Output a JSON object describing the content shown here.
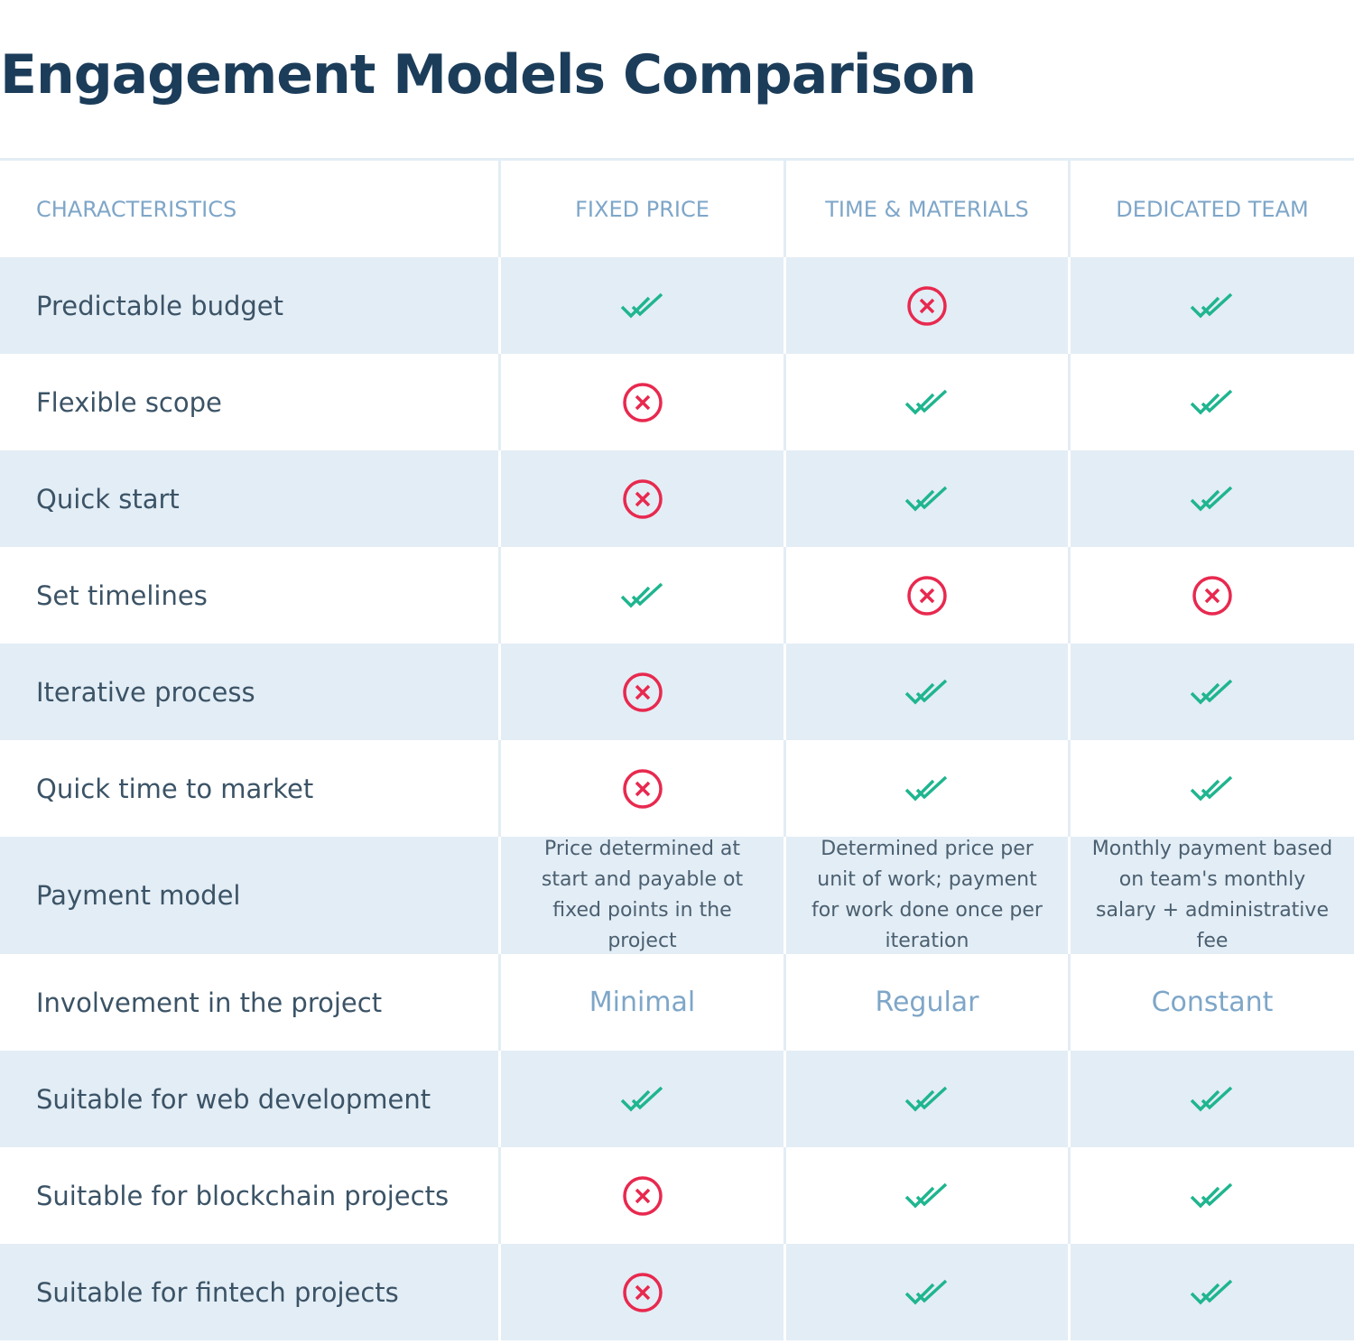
{
  "title": "Engagement Models Comparison",
  "table": {
    "headers": [
      "CHARACTERISTICS",
      "FIXED PRICE",
      "TIME & MATERIALS",
      "DEDICATED TEAM"
    ],
    "rows": [
      {
        "label": "Predictable budget",
        "cells": [
          true,
          false,
          true
        ]
      },
      {
        "label": "Flexible scope",
        "cells": [
          false,
          true,
          true
        ]
      },
      {
        "label": "Quick start",
        "cells": [
          false,
          true,
          true
        ]
      },
      {
        "label": "Set timelines",
        "cells": [
          true,
          false,
          false
        ]
      },
      {
        "label": "Iterative process",
        "cells": [
          false,
          true,
          true
        ]
      },
      {
        "label": "Quick time to market",
        "cells": [
          false,
          true,
          true
        ]
      },
      {
        "label": "Payment model",
        "cells": [
          "Price determined at start and payable ot fixed points in the project",
          "Determined price per unit of work; payment for work done once per iteration",
          "Monthly payment based on team's monthly salary + administrative fee"
        ]
      },
      {
        "label": "Involvement in the project",
        "cells": [
          "Minimal",
          "Regular",
          "Constant"
        ]
      },
      {
        "label": "Suitable for web development",
        "cells": [
          true,
          true,
          true
        ]
      },
      {
        "label": "Suitable for blockchain projects",
        "cells": [
          false,
          true,
          true
        ]
      },
      {
        "label": "Suitable for fintech projects",
        "cells": [
          false,
          true,
          true
        ]
      }
    ]
  }
}
